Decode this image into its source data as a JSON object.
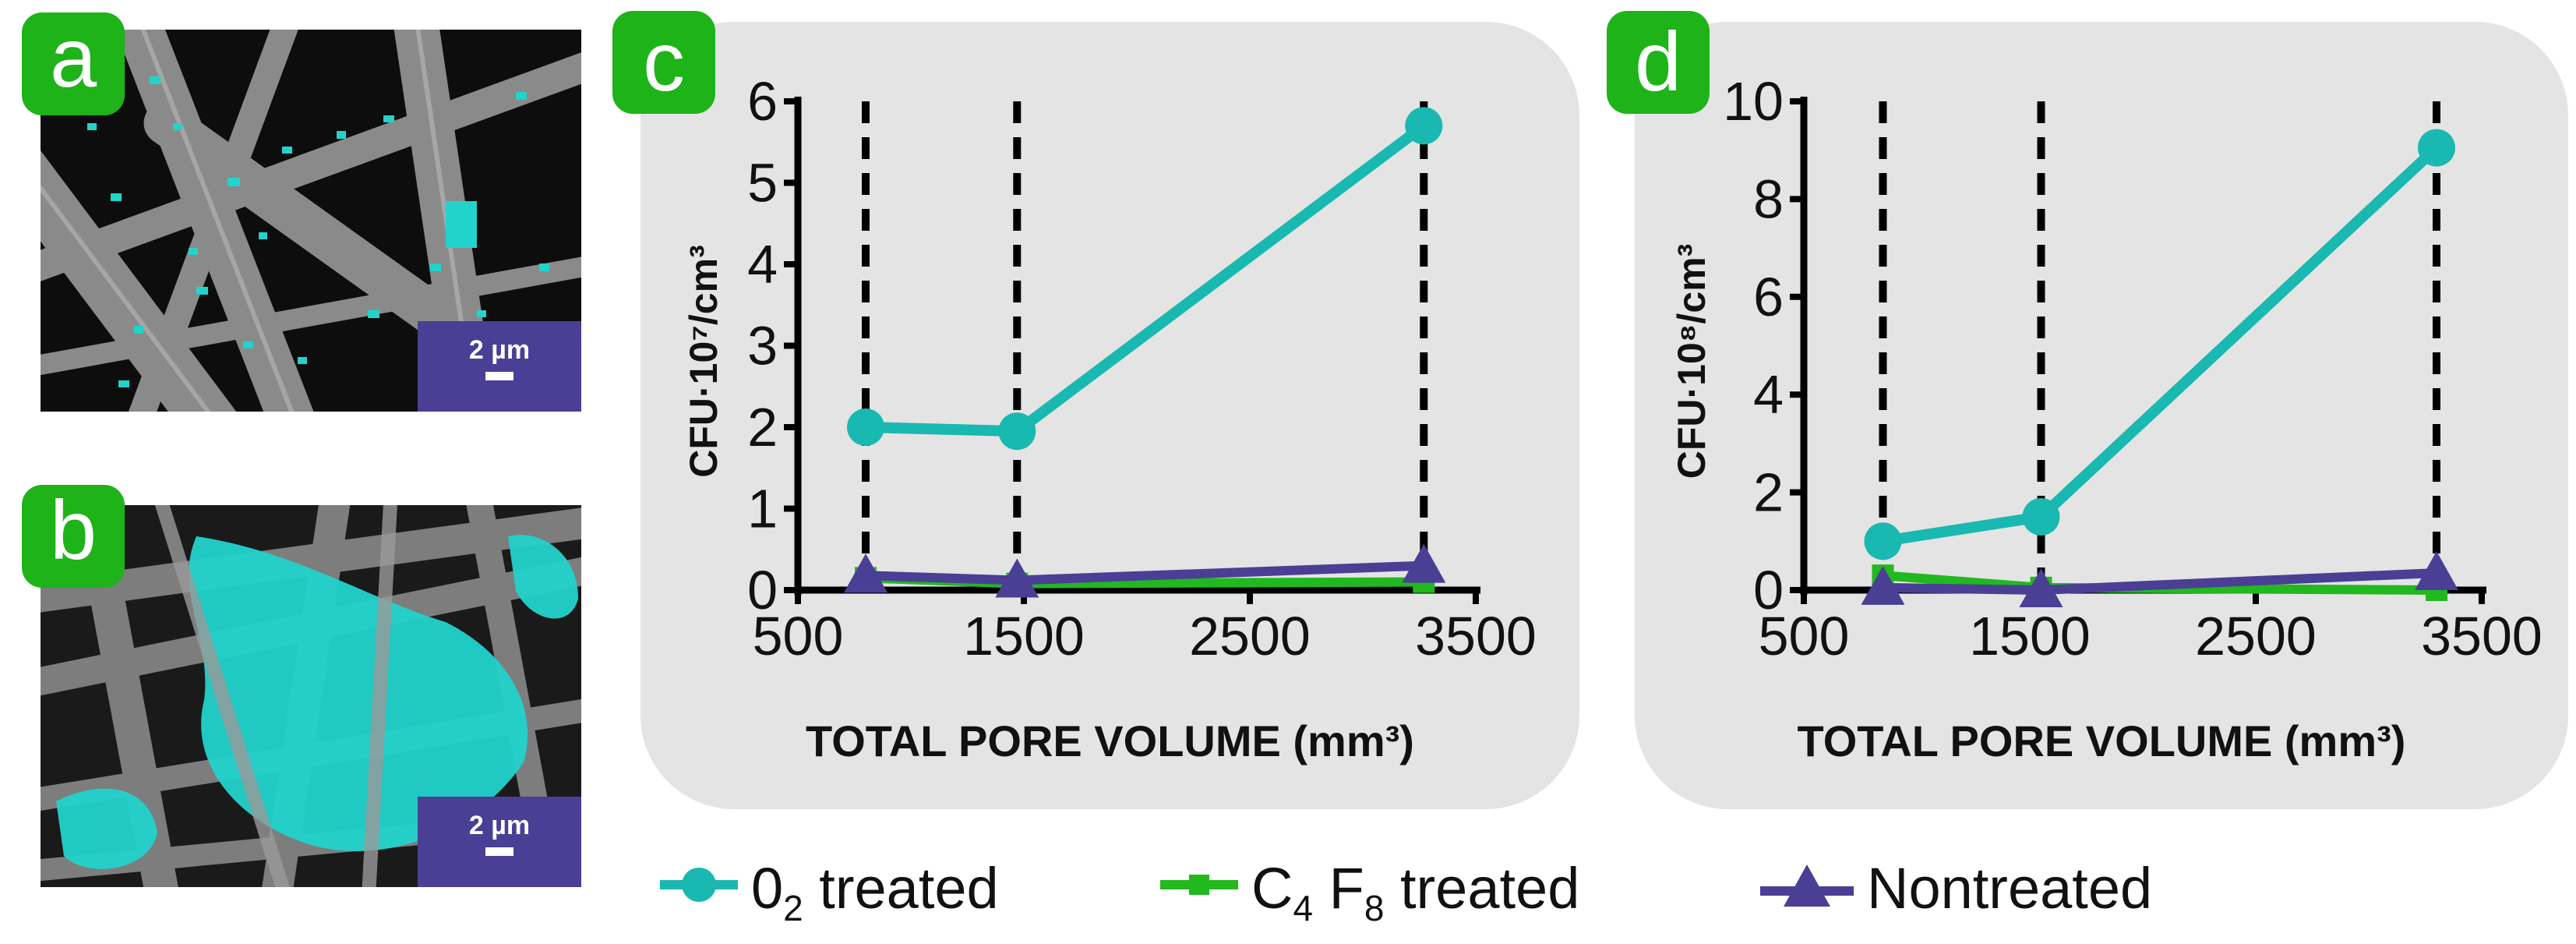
{
  "figure": {
    "panels": [
      {
        "label": "a",
        "scale_bar": "2 µm"
      },
      {
        "label": "b",
        "scale_bar": "2 µm"
      }
    ],
    "label_c": "c",
    "label_d": "d"
  },
  "colors": {
    "panel_label_bg": "#1db319",
    "o2": "#19b8b0",
    "c4f8": "#22b81f",
    "nontreated": "#4a3f95",
    "chart_bg": "#e4e4e4",
    "sem_highlight": "#22d3cc"
  },
  "legend": {
    "o2": {
      "pre": "0",
      "sub": "2",
      "post": " treated"
    },
    "c4f8": {
      "a": "C",
      "a_sub": "4",
      "b": " F",
      "b_sub": "8",
      "post": " treated"
    },
    "nontreated": {
      "text": "Nontreated"
    }
  },
  "chart_data": [
    {
      "id": "c",
      "type": "line",
      "title": "",
      "xlabel": "TOTAL PORE VOLUME (mm³)",
      "ylabel": "CFU·10⁷/cm³",
      "xlim": [
        500,
        3500
      ],
      "ylim": [
        0,
        6
      ],
      "xticks": [
        500,
        1500,
        2500,
        3500
      ],
      "yticks": [
        0,
        1,
        2,
        3,
        4,
        5,
        6
      ],
      "vlines": [
        800,
        1470,
        3270
      ],
      "series": [
        {
          "name": "O2 treated",
          "key": "o2",
          "marker": "circle",
          "x": [
            800,
            1470,
            3270
          ],
          "y": [
            2.0,
            1.95,
            5.7
          ]
        },
        {
          "name": "C4 F8 treated",
          "key": "c4f8",
          "marker": "square",
          "x": [
            800,
            1470,
            3270
          ],
          "y": [
            0.15,
            0.08,
            0.1
          ]
        },
        {
          "name": "Nontreated",
          "key": "nontreated",
          "marker": "triangle",
          "x": [
            800,
            1470,
            3270
          ],
          "y": [
            0.18,
            0.12,
            0.3
          ]
        }
      ]
    },
    {
      "id": "d",
      "type": "line",
      "title": "",
      "xlabel": "TOTAL PORE VOLUME (mm³)",
      "ylabel": "CFU·10⁸/cm³",
      "xlim": [
        500,
        3500
      ],
      "ylim": [
        0,
        10
      ],
      "xticks": [
        500,
        1500,
        2500,
        3500
      ],
      "yticks": [
        0,
        2,
        4,
        6,
        8,
        10
      ],
      "vlines": [
        850,
        1550,
        3300
      ],
      "series": [
        {
          "name": "O2 treated",
          "key": "o2",
          "marker": "circle",
          "x": [
            850,
            1550,
            3300
          ],
          "y": [
            1.0,
            1.5,
            9.05
          ]
        },
        {
          "name": "C4 F8 treated",
          "key": "c4f8",
          "marker": "square",
          "x": [
            850,
            1550,
            3300
          ],
          "y": [
            0.3,
            0.05,
            0.0
          ]
        },
        {
          "name": "Nontreated",
          "key": "nontreated",
          "marker": "triangle",
          "x": [
            850,
            1550,
            3300
          ],
          "y": [
            0.05,
            0.0,
            0.35
          ]
        }
      ]
    }
  ]
}
